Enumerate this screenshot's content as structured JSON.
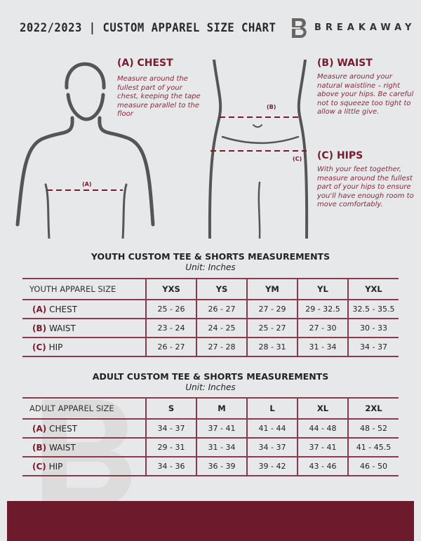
{
  "header": {
    "title": "2022/2023 | CUSTOM APPAREL SIZE CHART",
    "brand": "BREAKAWAY",
    "logo_letter": "B"
  },
  "sections": {
    "chest": {
      "heading": "(A) CHEST",
      "text": "Measure around the fullest part of your chest, keeping the tape measure parallel to the floor",
      "marker": "(A)"
    },
    "waist": {
      "heading": "(B) WAIST",
      "text": "Measure around your natural waistline – right above your hips. Be careful not to squeeze too tight to allow a little give.",
      "marker": "(B)"
    },
    "hips": {
      "heading": "(C) HIPS",
      "text": "With your feet together, measure around the fullest part of your hips to ensure you'll have enough room to move comfortably.",
      "marker": "(C)"
    }
  },
  "youth": {
    "title": "YOUTH CUSTOM TEE & SHORTS MEASUREMENTS",
    "unit": "Unit: Inches",
    "header": "YOUTH APPAREL SIZE",
    "sizes": [
      "YXS",
      "YS",
      "YM",
      "YL",
      "YXL"
    ],
    "rows": [
      {
        "code": "(A)",
        "label": "CHEST",
        "values": [
          "25 - 26",
          "26 - 27",
          "27 - 29",
          "29 - 32.5",
          "32.5 - 35.5"
        ]
      },
      {
        "code": "(B)",
        "label": "WAIST",
        "values": [
          "23 - 24",
          "24 - 25",
          "25 - 27",
          "27 - 30",
          "30 - 33"
        ]
      },
      {
        "code": "(C)",
        "label": "HIP",
        "values": [
          "26 - 27",
          "27 - 28",
          "28 - 31",
          "31 - 34",
          "34 - 37"
        ]
      }
    ]
  },
  "adult": {
    "title": "ADULT CUSTOM TEE & SHORTS MEASUREMENTS",
    "unit": "Unit: Inches",
    "header": "ADULT APPAREL SIZE",
    "sizes": [
      "S",
      "M",
      "L",
      "XL",
      "2XL"
    ],
    "rows": [
      {
        "code": "(A)",
        "label": "CHEST",
        "values": [
          "34 - 37",
          "37 - 41",
          "41 - 44",
          "44 - 48",
          "48 - 52"
        ]
      },
      {
        "code": "(B)",
        "label": "WAIST",
        "values": [
          "29 - 31",
          "31 - 34",
          "34 - 37",
          "37 - 41",
          "41 - 45.5"
        ]
      },
      {
        "code": "(C)",
        "label": "HIP",
        "values": [
          "34 - 36",
          "36 - 39",
          "39 - 42",
          "43 - 46",
          "46 - 50"
        ]
      }
    ]
  },
  "colors": {
    "accent": "#6d1a2c",
    "background": "#e7e8e9"
  }
}
